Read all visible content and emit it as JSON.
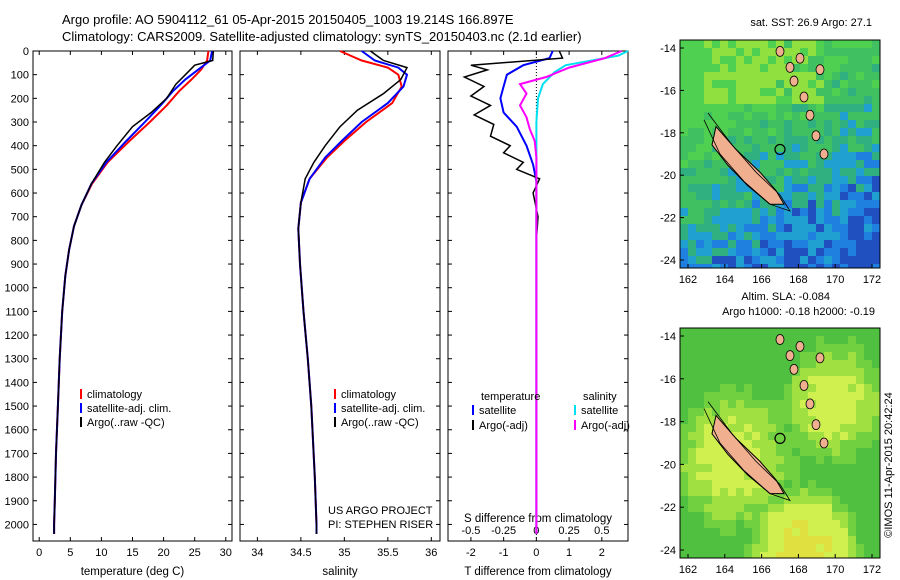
{
  "header": {
    "line1": "Argo profile: AO 5904112_61 05-Apr-2015 20150405_1003 19.214S 166.897E",
    "line2": "Climatology: CARS2009. Satellite-adjusted climatology: synTS_20150403.nc (2.1d earlier)"
  },
  "colors": {
    "climatology": "#ff0000",
    "satellite": "#0000ff",
    "argo": "#000000",
    "salinity_satellite": "#00e0f0",
    "salinity_argo": "#ff00ff",
    "land": "#f0b090"
  },
  "chart_data": [
    {
      "type": "line",
      "name": "temperature-profile",
      "xlabel": "temperature (deg C)",
      "xlim": [
        -1,
        31
      ],
      "ylim": [
        2070,
        0
      ],
      "xticks": [
        0,
        5,
        10,
        15,
        20,
        25,
        30
      ],
      "yticks": [
        0,
        100,
        200,
        300,
        400,
        500,
        600,
        700,
        800,
        900,
        1000,
        1100,
        1200,
        1300,
        1400,
        1500,
        1600,
        1700,
        1800,
        1900,
        2000
      ],
      "legend": [
        "climatology",
        "satellite-adj. clim.",
        "Argo(..raw -QC)"
      ],
      "series": [
        {
          "name": "climatology",
          "color": "#ff0000",
          "points": [
            [
              27.2,
              0
            ],
            [
              27.0,
              40
            ],
            [
              26.0,
              80
            ],
            [
              24.5,
              120
            ],
            [
              22.5,
              170
            ],
            [
              20.5,
              230
            ],
            [
              17.8,
              300
            ],
            [
              14.5,
              380
            ],
            [
              11.0,
              470
            ],
            [
              8.5,
              560
            ],
            [
              6.8,
              650
            ],
            [
              5.6,
              740
            ],
            [
              4.8,
              840
            ],
            [
              4.2,
              950
            ],
            [
              3.7,
              1100
            ],
            [
              3.3,
              1300
            ],
            [
              3.0,
              1500
            ],
            [
              2.7,
              1700
            ],
            [
              2.5,
              1900
            ],
            [
              2.4,
              2000
            ],
            [
              2.4,
              2040
            ]
          ]
        },
        {
          "name": "satellite-adj. clim.",
          "color": "#0000ff",
          "points": [
            [
              27.8,
              0
            ],
            [
              27.5,
              40
            ],
            [
              25.5,
              80
            ],
            [
              23.5,
              120
            ],
            [
              21.5,
              170
            ],
            [
              19.5,
              230
            ],
            [
              17.0,
              300
            ],
            [
              14.0,
              380
            ],
            [
              10.8,
              470
            ],
            [
              8.4,
              560
            ],
            [
              6.8,
              650
            ],
            [
              5.6,
              740
            ],
            [
              4.8,
              840
            ],
            [
              4.2,
              950
            ],
            [
              3.7,
              1100
            ],
            [
              3.3,
              1300
            ],
            [
              3.0,
              1500
            ],
            [
              2.7,
              1700
            ],
            [
              2.5,
              1900
            ],
            [
              2.4,
              2000
            ],
            [
              2.4,
              2040
            ]
          ]
        },
        {
          "name": "Argo(..raw -QC)",
          "color": "#000000",
          "points": [
            [
              28.0,
              0
            ],
            [
              27.9,
              40
            ],
            [
              25.0,
              60
            ],
            [
              23.5,
              100
            ],
            [
              22.0,
              140
            ],
            [
              20.5,
              200
            ],
            [
              18.0,
              260
            ],
            [
              15.0,
              320
            ],
            [
              12.5,
              400
            ],
            [
              10.5,
              470
            ],
            [
              8.4,
              560
            ],
            [
              6.8,
              650
            ],
            [
              5.6,
              740
            ],
            [
              4.8,
              840
            ],
            [
              4.2,
              950
            ],
            [
              3.7,
              1100
            ],
            [
              3.3,
              1300
            ],
            [
              3.0,
              1500
            ],
            [
              2.7,
              1700
            ],
            [
              2.5,
              1900
            ],
            [
              2.4,
              2000
            ],
            [
              2.4,
              2040
            ]
          ]
        }
      ]
    },
    {
      "type": "line",
      "name": "salinity-profile",
      "xlabel": "salinity",
      "xlim": [
        33.8,
        36.1
      ],
      "ylim": [
        2070,
        0
      ],
      "xticks": [
        34,
        34.5,
        35,
        35.5,
        36
      ],
      "legend": [
        "climatology",
        "satellite-adj. clim.",
        "Argo(..raw -QC)"
      ],
      "annotation": [
        "US ARGO PROJECT",
        "PI: STEPHEN RISER"
      ],
      "series": [
        {
          "name": "climatology",
          "color": "#ff0000",
          "points": [
            [
              34.95,
              0
            ],
            [
              35.2,
              40
            ],
            [
              35.5,
              70
            ],
            [
              35.62,
              100
            ],
            [
              35.66,
              150
            ],
            [
              35.55,
              220
            ],
            [
              35.25,
              300
            ],
            [
              35.0,
              380
            ],
            [
              34.8,
              450
            ],
            [
              34.6,
              540
            ],
            [
              34.5,
              640
            ],
            [
              34.47,
              750
            ],
            [
              34.49,
              900
            ],
            [
              34.53,
              1100
            ],
            [
              34.58,
              1300
            ],
            [
              34.62,
              1500
            ],
            [
              34.66,
              1800
            ],
            [
              34.68,
              2000
            ],
            [
              34.68,
              2040
            ]
          ]
        },
        {
          "name": "satellite-adj. clim.",
          "color": "#0000ff",
          "points": [
            [
              35.2,
              0
            ],
            [
              35.35,
              40
            ],
            [
              35.62,
              70
            ],
            [
              35.72,
              100
            ],
            [
              35.68,
              150
            ],
            [
              35.5,
              220
            ],
            [
              35.2,
              300
            ],
            [
              34.97,
              380
            ],
            [
              34.78,
              450
            ],
            [
              34.6,
              540
            ],
            [
              34.5,
              640
            ],
            [
              34.47,
              750
            ],
            [
              34.49,
              900
            ],
            [
              34.53,
              1100
            ],
            [
              34.58,
              1300
            ],
            [
              34.62,
              1500
            ],
            [
              34.66,
              1800
            ],
            [
              34.68,
              2000
            ],
            [
              34.68,
              2040
            ]
          ]
        },
        {
          "name": "Argo(..raw -QC)",
          "color": "#000000",
          "points": [
            [
              35.3,
              0
            ],
            [
              35.45,
              40
            ],
            [
              35.72,
              70
            ],
            [
              35.65,
              120
            ],
            [
              35.45,
              180
            ],
            [
              35.15,
              250
            ],
            [
              34.95,
              320
            ],
            [
              34.78,
              400
            ],
            [
              34.65,
              470
            ],
            [
              34.55,
              540
            ],
            [
              34.5,
              640
            ],
            [
              34.47,
              750
            ],
            [
              34.49,
              900
            ],
            [
              34.53,
              1100
            ],
            [
              34.58,
              1300
            ],
            [
              34.62,
              1500
            ],
            [
              34.66,
              1800
            ],
            [
              34.68,
              2000
            ],
            [
              34.68,
              2040
            ]
          ]
        }
      ]
    },
    {
      "type": "line",
      "name": "difference-from-climatology",
      "xlabel_top": "S difference from climatology",
      "xlabel": "T difference from climatology",
      "xlim": [
        -2.7,
        2.8
      ],
      "ylim": [
        2070,
        0
      ],
      "xticks_bottom": [
        -2,
        -1,
        0,
        1,
        2
      ],
      "xticks_top_labels": [
        "-0.5",
        "-0.25",
        "0",
        "0.25",
        "0.5"
      ],
      "legend_left_title": "temperature",
      "legend_right_title": "salinity",
      "legend_left": [
        "satellite",
        "Argo(-adj)"
      ],
      "legend_right": [
        "satellite",
        "Argo(-adj)"
      ],
      "series": [
        {
          "name": "temperature satellite",
          "color": "#0000ff",
          "points": [
            [
              0.5,
              0
            ],
            [
              0.4,
              30
            ],
            [
              -0.4,
              60
            ],
            [
              -0.9,
              100
            ],
            [
              -1.0,
              150
            ],
            [
              -1.1,
              200
            ],
            [
              -1.0,
              260
            ],
            [
              -0.6,
              320
            ],
            [
              -0.3,
              400
            ],
            [
              -0.1,
              480
            ],
            [
              0.0,
              550
            ],
            [
              0.0,
              2040
            ]
          ]
        },
        {
          "name": "temperature Argo(-adj)",
          "color": "#000000",
          "points": [
            [
              0.7,
              0
            ],
            [
              0.8,
              30
            ],
            [
              -2.0,
              60
            ],
            [
              -1.5,
              80
            ],
            [
              -2.2,
              110
            ],
            [
              -1.6,
              150
            ],
            [
              -2.0,
              190
            ],
            [
              -1.4,
              230
            ],
            [
              -1.9,
              270
            ],
            [
              -1.3,
              310
            ],
            [
              -1.4,
              360
            ],
            [
              -0.8,
              400
            ],
            [
              -1.0,
              430
            ],
            [
              -0.4,
              470
            ],
            [
              -0.6,
              500
            ],
            [
              0.1,
              540
            ],
            [
              -0.1,
              600
            ],
            [
              0.05,
              700
            ],
            [
              0.0,
              800
            ],
            [
              0.0,
              2040
            ]
          ]
        },
        {
          "name": "salinity satellite",
          "color": "#00e0f0",
          "points": [
            [
              2.8,
              0
            ],
            [
              2.5,
              20
            ],
            [
              0.9,
              60
            ],
            [
              0.55,
              90
            ],
            [
              0.2,
              140
            ],
            [
              0.05,
              200
            ],
            [
              0.0,
              300
            ],
            [
              0.0,
              2040
            ]
          ]
        },
        {
          "name": "salinity Argo(-adj)",
          "color": "#ff00ff",
          "points": [
            [
              2.6,
              0
            ],
            [
              2.1,
              30
            ],
            [
              1.0,
              70
            ],
            [
              0.3,
              110
            ],
            [
              -0.5,
              140
            ],
            [
              -0.3,
              180
            ],
            [
              -0.5,
              230
            ],
            [
              -0.3,
              280
            ],
            [
              -0.2,
              330
            ],
            [
              -0.05,
              380
            ],
            [
              0.0,
              450
            ],
            [
              0.0,
              2040
            ]
          ]
        }
      ]
    }
  ],
  "maps": [
    {
      "title": "sat. SST: 26.9 Argo: 27.1",
      "xticks": [
        "162",
        "164",
        "166",
        "168",
        "170",
        "172"
      ],
      "yticks": [
        "-14",
        "-16",
        "-18",
        "-20",
        "-22",
        "-24"
      ],
      "palette": [
        "#40c060",
        "#50d050",
        "#90e040",
        "#30b080",
        "#20a0d0",
        "#2080e0",
        "#2050c0"
      ]
    },
    {
      "title1": "Altim. SLA: -0.084",
      "title2": "Argo h1000: -0.18 h2000: -0.19",
      "xticks": [
        "162",
        "164",
        "166",
        "168",
        "170",
        "172"
      ],
      "yticks": [
        "-14",
        "-16",
        "-18",
        "-20",
        "-22",
        "-24"
      ],
      "palette": [
        "#50c040",
        "#70d040",
        "#a0e040",
        "#d0f050",
        "#40b060"
      ]
    }
  ],
  "footer_vertical": "©IMOS 11-Apr-2015 20:42:24"
}
